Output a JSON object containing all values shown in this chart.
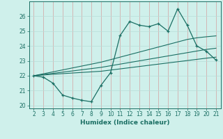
{
  "xlabel": "Humidex (Indice chaleur)",
  "bg_color": "#cff0eb",
  "grid_color_v": "#d4a0a0",
  "grid_color_h": "#b8ddd8",
  "line_color": "#1a6e63",
  "x_data": [
    2,
    3,
    4,
    5,
    6,
    7,
    8,
    9,
    10,
    11,
    12,
    13,
    14,
    15,
    16,
    17,
    18,
    19,
    20,
    21
  ],
  "y_main": [
    22.0,
    21.9,
    21.5,
    20.7,
    20.5,
    20.35,
    20.25,
    21.35,
    22.2,
    24.7,
    25.65,
    25.4,
    25.3,
    25.5,
    25.0,
    26.5,
    25.4,
    24.0,
    23.65,
    23.05
  ],
  "y_line1": [
    22.0,
    22.05,
    22.1,
    22.14,
    22.18,
    22.22,
    22.26,
    22.3,
    22.38,
    22.46,
    22.54,
    22.62,
    22.7,
    22.78,
    22.86,
    22.94,
    23.02,
    23.1,
    23.18,
    23.25
  ],
  "y_line2": [
    22.0,
    22.08,
    22.16,
    22.24,
    22.32,
    22.4,
    22.48,
    22.56,
    22.67,
    22.78,
    22.89,
    23.0,
    23.11,
    23.22,
    23.33,
    23.44,
    23.55,
    23.66,
    23.77,
    23.85
  ],
  "y_line3": [
    22.0,
    22.13,
    22.26,
    22.39,
    22.52,
    22.65,
    22.78,
    22.91,
    23.08,
    23.25,
    23.42,
    23.59,
    23.76,
    23.93,
    24.1,
    24.27,
    24.44,
    24.55,
    24.62,
    24.68
  ],
  "xlim": [
    1.5,
    21.5
  ],
  "ylim": [
    19.8,
    27.0
  ],
  "yticks": [
    20,
    21,
    22,
    23,
    24,
    25,
    26
  ],
  "xticks": [
    2,
    3,
    4,
    5,
    6,
    7,
    8,
    9,
    10,
    11,
    12,
    13,
    14,
    15,
    16,
    17,
    18,
    19,
    20,
    21
  ]
}
